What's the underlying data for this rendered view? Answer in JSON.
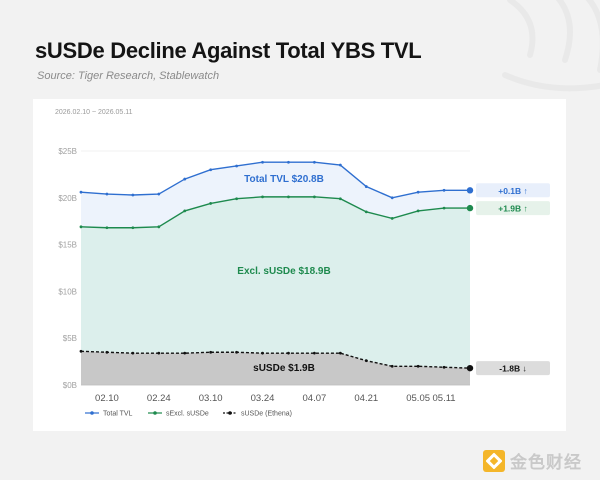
{
  "header": {
    "title": "sUSDe Decline Against Total YBS TVL",
    "source": "Source: Tiger Research, Stablewatch"
  },
  "watermark": {
    "text": "金色财经"
  },
  "chart_data": {
    "type": "area",
    "date_range": "2026.02.10 ~ 2026.05.11",
    "x": [
      "02.03",
      "02.10",
      "02.17",
      "02.24",
      "03.03",
      "03.10",
      "03.17",
      "03.24",
      "03.31",
      "04.07",
      "04.14",
      "04.21",
      "04.28",
      "05.05",
      "05.11",
      "05.18"
    ],
    "x_tick_labels": [
      "02.10",
      "02.24",
      "03.10",
      "03.24",
      "04.07",
      "04.21",
      "05.05",
      "05.11"
    ],
    "y_tick_labels": [
      "$0B",
      "$5B",
      "$10B",
      "$15B",
      "$20B",
      "$25B"
    ],
    "ylim": [
      0,
      25
    ],
    "grid": true,
    "legend_position": "bottom-left",
    "series": [
      {
        "name": "Total TVL",
        "color": "#2f6fd0",
        "values": [
          20.6,
          20.4,
          20.3,
          20.4,
          22.0,
          23.0,
          23.4,
          23.8,
          23.8,
          23.8,
          23.5,
          21.2,
          20.0,
          20.6,
          20.8,
          20.8
        ],
        "area_label": "Total TVL $20.8B",
        "change": "+0.1B ↑"
      },
      {
        "name": "sExcl. sUSDe",
        "color": "#1e8a4e",
        "values": [
          16.9,
          16.8,
          16.8,
          16.9,
          18.6,
          19.4,
          19.9,
          20.1,
          20.1,
          20.1,
          19.9,
          18.5,
          17.8,
          18.6,
          18.9,
          18.9
        ],
        "area_label": "Excl. sUSDe $18.9B",
        "change": "+1.9B ↑"
      },
      {
        "name": "sUSDe (Ethena)",
        "color": "#111111",
        "values": [
          3.6,
          3.5,
          3.4,
          3.4,
          3.4,
          3.5,
          3.5,
          3.4,
          3.4,
          3.4,
          3.4,
          2.6,
          2.0,
          2.0,
          1.9,
          1.8
        ],
        "area_label": "sUSDe $1.9B",
        "change": "-1.8B ↓"
      }
    ]
  }
}
